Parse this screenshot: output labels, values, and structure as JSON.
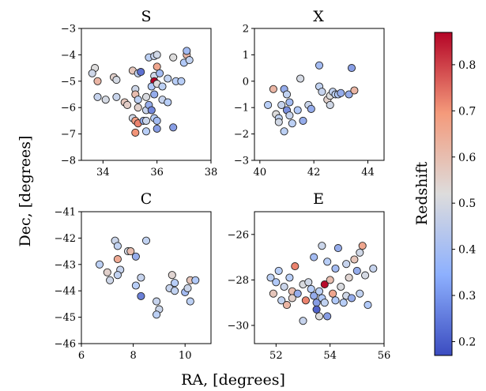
{
  "figure": {
    "xlabel": "RA, [degrees]",
    "ylabel": "Dec, [degrees]"
  },
  "colorbar": {
    "label": "Redshift",
    "range": [
      0.17,
      0.87
    ],
    "ticks": [
      "0.2",
      "0.3",
      "0.4",
      "0.5",
      "0.6",
      "0.7",
      "0.8"
    ],
    "tick_values": [
      0.2,
      0.3,
      0.4,
      0.5,
      0.6,
      0.7,
      0.8
    ],
    "colormap": "coolwarm",
    "colors": [
      "#3b4cc0",
      "#b4cdfa",
      "#dddcdc",
      "#f4987a",
      "#b40426"
    ]
  },
  "chart_data": [
    {
      "type": "scatter",
      "title": "S",
      "xlim": [
        33.2,
        38
      ],
      "ylim": [
        -8,
        -3
      ],
      "xticks": [
        "34",
        "36",
        "38"
      ],
      "xtick_values": [
        34,
        36,
        38
      ],
      "yticks": [
        "−3",
        "−4",
        "−5",
        "−6",
        "−7",
        "−8"
      ],
      "ytick_values": [
        -3,
        -4,
        -5,
        -6,
        -7,
        -8
      ],
      "points": [
        {
          "x": 33.7,
          "y": -4.5,
          "z": 0.52
        },
        {
          "x": 33.6,
          "y": -4.7,
          "z": 0.45
        },
        {
          "x": 33.8,
          "y": -5.0,
          "z": 0.62
        },
        {
          "x": 33.8,
          "y": -5.6,
          "z": 0.42
        },
        {
          "x": 34.1,
          "y": -5.7,
          "z": 0.48
        },
        {
          "x": 34.4,
          "y": -4.85,
          "z": 0.55
        },
        {
          "x": 34.5,
          "y": -4.95,
          "z": 0.48
        },
        {
          "x": 34.5,
          "y": -5.6,
          "z": 0.43
        },
        {
          "x": 34.8,
          "y": -5.8,
          "z": 0.58
        },
        {
          "x": 34.9,
          "y": -5.9,
          "z": 0.56
        },
        {
          "x": 35.1,
          "y": -4.6,
          "z": 0.58
        },
        {
          "x": 35.3,
          "y": -4.7,
          "z": 0.4
        },
        {
          "x": 35.4,
          "y": -4.65,
          "z": 0.22
        },
        {
          "x": 35.2,
          "y": -5.3,
          "z": 0.45
        },
        {
          "x": 35.2,
          "y": -5.5,
          "z": 0.6
        },
        {
          "x": 35.3,
          "y": -5.7,
          "z": 0.38
        },
        {
          "x": 35.3,
          "y": -6.0,
          "z": 0.55
        },
        {
          "x": 35.1,
          "y": -6.4,
          "z": 0.46
        },
        {
          "x": 35.2,
          "y": -6.5,
          "z": 0.68
        },
        {
          "x": 35.3,
          "y": -6.6,
          "z": 0.72
        },
        {
          "x": 35.2,
          "y": -6.95,
          "z": 0.7
        },
        {
          "x": 35.5,
          "y": -6.5,
          "z": 0.3
        },
        {
          "x": 35.6,
          "y": -6.1,
          "z": 0.42
        },
        {
          "x": 35.7,
          "y": -5.9,
          "z": 0.3
        },
        {
          "x": 35.8,
          "y": -6.1,
          "z": 0.25
        },
        {
          "x": 35.6,
          "y": -5.6,
          "z": 0.5
        },
        {
          "x": 35.7,
          "y": -4.1,
          "z": 0.38
        },
        {
          "x": 35.9,
          "y": -4.05,
          "z": 0.42
        },
        {
          "x": 36.0,
          "y": -4.0,
          "z": 0.46
        },
        {
          "x": 36.0,
          "y": -4.45,
          "z": 0.66
        },
        {
          "x": 35.9,
          "y": -4.8,
          "z": 0.45
        },
        {
          "x": 36.1,
          "y": -4.7,
          "z": 0.32
        },
        {
          "x": 35.9,
          "y": -5.0,
          "z": 0.87
        },
        {
          "x": 35.8,
          "y": -5.2,
          "z": 0.34
        },
        {
          "x": 36.0,
          "y": -5.1,
          "z": 0.52
        },
        {
          "x": 35.9,
          "y": -5.5,
          "z": 0.3
        },
        {
          "x": 36.2,
          "y": -5.2,
          "z": 0.38
        },
        {
          "x": 35.9,
          "y": -6.4,
          "z": 0.36
        },
        {
          "x": 35.6,
          "y": -6.5,
          "z": 0.44
        },
        {
          "x": 36.0,
          "y": -6.5,
          "z": 0.32
        },
        {
          "x": 35.6,
          "y": -6.9,
          "z": 0.36
        },
        {
          "x": 36.0,
          "y": -6.8,
          "z": 0.28
        },
        {
          "x": 36.2,
          "y": -5.7,
          "z": 0.42
        },
        {
          "x": 36.4,
          "y": -5.8,
          "z": 0.36
        },
        {
          "x": 36.6,
          "y": -6.75,
          "z": 0.28
        },
        {
          "x": 36.6,
          "y": -4.1,
          "z": 0.52
        },
        {
          "x": 36.4,
          "y": -4.9,
          "z": 0.4
        },
        {
          "x": 36.7,
          "y": -5.0,
          "z": 0.36
        },
        {
          "x": 36.9,
          "y": -5.0,
          "z": 0.36
        },
        {
          "x": 37.1,
          "y": -4.0,
          "z": 0.62
        },
        {
          "x": 37.0,
          "y": -4.3,
          "z": 0.34
        },
        {
          "x": 37.2,
          "y": -4.2,
          "z": 0.4
        },
        {
          "x": 37.1,
          "y": -3.85,
          "z": 0.32
        }
      ]
    },
    {
      "type": "scatter",
      "title": "X",
      "xlim": [
        39.8,
        44.6
      ],
      "ylim": [
        -3,
        2
      ],
      "xticks": [
        "40",
        "42",
        "44"
      ],
      "xtick_values": [
        40,
        42,
        44
      ],
      "yticks": [
        "2",
        "1",
        "0",
        "−1",
        "−2",
        "−3"
      ],
      "ytick_values": [
        2,
        1,
        0,
        -1,
        -2,
        -3
      ],
      "points": [
        {
          "x": 40.3,
          "y": -0.9,
          "z": 0.36
        },
        {
          "x": 40.5,
          "y": -0.3,
          "z": 0.62
        },
        {
          "x": 40.6,
          "y": -1.25,
          "z": 0.52
        },
        {
          "x": 40.7,
          "y": -1.4,
          "z": 0.4
        },
        {
          "x": 40.7,
          "y": -1.55,
          "z": 0.47
        },
        {
          "x": 40.8,
          "y": -0.9,
          "z": 0.42
        },
        {
          "x": 40.9,
          "y": -0.3,
          "z": 0.3
        },
        {
          "x": 40.9,
          "y": -1.9,
          "z": 0.38
        },
        {
          "x": 41.0,
          "y": -0.5,
          "z": 0.4
        },
        {
          "x": 41.0,
          "y": -1.1,
          "z": 0.26
        },
        {
          "x": 41.1,
          "y": -1.3,
          "z": 0.42
        },
        {
          "x": 41.2,
          "y": -1.6,
          "z": 0.38
        },
        {
          "x": 41.1,
          "y": -0.8,
          "z": 0.32
        },
        {
          "x": 41.5,
          "y": 0.1,
          "z": 0.48
        },
        {
          "x": 41.4,
          "y": -1.1,
          "z": 0.34
        },
        {
          "x": 41.6,
          "y": -1.5,
          "z": 0.3
        },
        {
          "x": 41.8,
          "y": -0.9,
          "z": 0.44
        },
        {
          "x": 41.9,
          "y": -1.05,
          "z": 0.3
        },
        {
          "x": 42.2,
          "y": 0.6,
          "z": 0.32
        },
        {
          "x": 42.2,
          "y": -0.2,
          "z": 0.4
        },
        {
          "x": 42.3,
          "y": -0.4,
          "z": 0.42
        },
        {
          "x": 42.5,
          "y": -0.7,
          "z": 0.55
        },
        {
          "x": 42.6,
          "y": -0.55,
          "z": 0.52
        },
        {
          "x": 42.7,
          "y": -0.4,
          "z": 0.4
        },
        {
          "x": 42.8,
          "y": -0.5,
          "z": 0.38
        },
        {
          "x": 42.9,
          "y": -0.5,
          "z": 0.34
        },
        {
          "x": 43.0,
          "y": -0.45,
          "z": 0.3
        },
        {
          "x": 43.3,
          "y": -0.5,
          "z": 0.3
        },
        {
          "x": 43.4,
          "y": 0.5,
          "z": 0.28
        },
        {
          "x": 43.5,
          "y": -0.35,
          "z": 0.62
        },
        {
          "x": 42.6,
          "y": -0.9,
          "z": 0.46
        }
      ]
    },
    {
      "type": "scatter",
      "title": "C",
      "xlim": [
        6,
        11
      ],
      "ylim": [
        -46,
        -41
      ],
      "xticks": [
        "6",
        "8",
        "10"
      ],
      "xtick_values": [
        6,
        8,
        10
      ],
      "yticks": [
        "−41",
        "−42",
        "−43",
        "−44",
        "−45",
        "−46"
      ],
      "ytick_values": [
        -41,
        -42,
        -43,
        -44,
        -45,
        -46
      ],
      "points": [
        {
          "x": 6.7,
          "y": -43.0,
          "z": 0.38
        },
        {
          "x": 7.0,
          "y": -43.3,
          "z": 0.55
        },
        {
          "x": 7.1,
          "y": -43.6,
          "z": 0.45
        },
        {
          "x": 7.3,
          "y": -42.1,
          "z": 0.44
        },
        {
          "x": 7.4,
          "y": -42.3,
          "z": 0.4
        },
        {
          "x": 7.4,
          "y": -42.8,
          "z": 0.65
        },
        {
          "x": 7.5,
          "y": -43.2,
          "z": 0.42
        },
        {
          "x": 7.4,
          "y": -43.4,
          "z": 0.4
        },
        {
          "x": 7.8,
          "y": -42.5,
          "z": 0.48
        },
        {
          "x": 7.9,
          "y": -42.5,
          "z": 0.6
        },
        {
          "x": 8.1,
          "y": -42.7,
          "z": 0.3
        },
        {
          "x": 8.1,
          "y": -43.8,
          "z": 0.36
        },
        {
          "x": 8.3,
          "y": -43.5,
          "z": 0.42
        },
        {
          "x": 8.3,
          "y": -44.2,
          "z": 0.24
        },
        {
          "x": 8.5,
          "y": -42.1,
          "z": 0.4
        },
        {
          "x": 8.9,
          "y": -44.4,
          "z": 0.42
        },
        {
          "x": 9.0,
          "y": -44.7,
          "z": 0.44
        },
        {
          "x": 8.9,
          "y": -44.9,
          "z": 0.38
        },
        {
          "x": 9.5,
          "y": -43.4,
          "z": 0.54
        },
        {
          "x": 9.6,
          "y": -43.7,
          "z": 0.36
        },
        {
          "x": 9.4,
          "y": -43.9,
          "z": 0.42
        },
        {
          "x": 9.6,
          "y": -44.0,
          "z": 0.4
        },
        {
          "x": 10.0,
          "y": -44.05,
          "z": 0.32
        },
        {
          "x": 10.2,
          "y": -43.6,
          "z": 0.58
        },
        {
          "x": 10.1,
          "y": -43.9,
          "z": 0.44
        },
        {
          "x": 10.4,
          "y": -43.6,
          "z": 0.34
        },
        {
          "x": 10.2,
          "y": -44.4,
          "z": 0.38
        }
      ]
    },
    {
      "type": "scatter",
      "title": "E",
      "xlim": [
        51.2,
        56
      ],
      "ylim": [
        -30.8,
        -25
      ],
      "xticks": [
        "52",
        "54",
        "56"
      ],
      "xtick_values": [
        52,
        54,
        56
      ],
      "yticks": [
        "−26",
        "−28",
        "−30"
      ],
      "ytick_values": [
        -26,
        -28,
        -30
      ],
      "points": [
        {
          "x": 51.8,
          "y": -27.9,
          "z": 0.38
        },
        {
          "x": 51.9,
          "y": -28.6,
          "z": 0.58
        },
        {
          "x": 52.0,
          "y": -28.1,
          "z": 0.34
        },
        {
          "x": 52.1,
          "y": -27.6,
          "z": 0.36
        },
        {
          "x": 52.2,
          "y": -28.9,
          "z": 0.4
        },
        {
          "x": 52.3,
          "y": -28.3,
          "z": 0.44
        },
        {
          "x": 52.4,
          "y": -29.1,
          "z": 0.62
        },
        {
          "x": 52.5,
          "y": -27.9,
          "z": 0.36
        },
        {
          "x": 52.6,
          "y": -28.5,
          "z": 0.6
        },
        {
          "x": 52.6,
          "y": -28.8,
          "z": 0.55
        },
        {
          "x": 52.7,
          "y": -27.4,
          "z": 0.72
        },
        {
          "x": 52.8,
          "y": -28.6,
          "z": 0.3
        },
        {
          "x": 53.0,
          "y": -28.2,
          "z": 0.5
        },
        {
          "x": 53.1,
          "y": -28.9,
          "z": 0.72
        },
        {
          "x": 53.2,
          "y": -28.1,
          "z": 0.46
        },
        {
          "x": 53.3,
          "y": -28.4,
          "z": 0.36
        },
        {
          "x": 53.4,
          "y": -27.0,
          "z": 0.32
        },
        {
          "x": 53.4,
          "y": -28.7,
          "z": 0.3
        },
        {
          "x": 53.5,
          "y": -29.0,
          "z": 0.28
        },
        {
          "x": 53.5,
          "y": -29.3,
          "z": 0.2
        },
        {
          "x": 53.6,
          "y": -28.5,
          "z": 0.38
        },
        {
          "x": 53.6,
          "y": -29.6,
          "z": 0.52
        },
        {
          "x": 53.7,
          "y": -26.5,
          "z": 0.44
        },
        {
          "x": 53.7,
          "y": -28.8,
          "z": 0.34
        },
        {
          "x": 53.8,
          "y": -28.2,
          "z": 0.86
        },
        {
          "x": 53.8,
          "y": -29.0,
          "z": 0.4
        },
        {
          "x": 53.9,
          "y": -27.2,
          "z": 0.36
        },
        {
          "x": 53.9,
          "y": -29.6,
          "z": 0.28
        },
        {
          "x": 54.0,
          "y": -28.0,
          "z": 0.6
        },
        {
          "x": 54.1,
          "y": -28.6,
          "z": 0.66
        },
        {
          "x": 54.2,
          "y": -27.5,
          "z": 0.32
        },
        {
          "x": 54.2,
          "y": -28.9,
          "z": 0.34
        },
        {
          "x": 54.3,
          "y": -26.6,
          "z": 0.3
        },
        {
          "x": 54.4,
          "y": -28.3,
          "z": 0.5
        },
        {
          "x": 54.5,
          "y": -29.0,
          "z": 0.36
        },
        {
          "x": 54.6,
          "y": -27.3,
          "z": 0.42
        },
        {
          "x": 54.6,
          "y": -28.7,
          "z": 0.46
        },
        {
          "x": 54.7,
          "y": -27.9,
          "z": 0.54
        },
        {
          "x": 54.8,
          "y": -28.8,
          "z": 0.3
        },
        {
          "x": 54.9,
          "y": -27.1,
          "z": 0.58
        },
        {
          "x": 55.0,
          "y": -27.6,
          "z": 0.3
        },
        {
          "x": 55.1,
          "y": -26.8,
          "z": 0.46
        },
        {
          "x": 55.1,
          "y": -28.6,
          "z": 0.4
        },
        {
          "x": 55.2,
          "y": -26.5,
          "z": 0.66
        },
        {
          "x": 55.3,
          "y": -27.8,
          "z": 0.48
        },
        {
          "x": 55.4,
          "y": -29.1,
          "z": 0.34
        },
        {
          "x": 53.0,
          "y": -29.8,
          "z": 0.42
        },
        {
          "x": 55.6,
          "y": -27.5,
          "z": 0.42
        }
      ]
    }
  ]
}
